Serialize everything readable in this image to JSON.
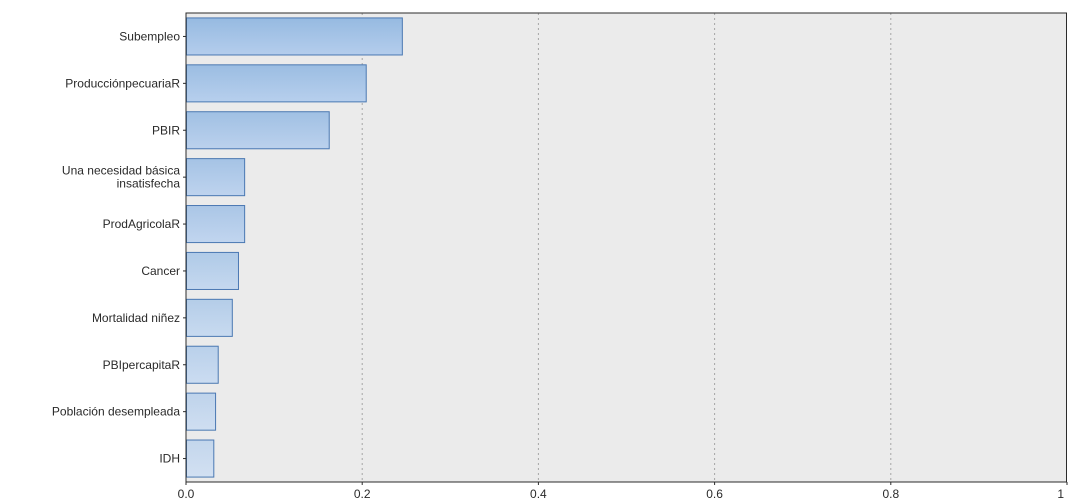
{
  "chart_data": {
    "type": "bar",
    "orientation": "horizontal",
    "title": "",
    "xlabel": "",
    "ylabel": "",
    "categories": [
      [
        "Subempleo"
      ],
      [
        "ProducciónpecuariaR"
      ],
      [
        "PBIR"
      ],
      [
        "Una necesidad básica",
        "insatisfecha"
      ],
      [
        "ProdAgricolaR"
      ],
      [
        "Cancer"
      ],
      [
        "Mortalidad niñez"
      ],
      [
        "PBIpercapitaR"
      ],
      [
        "Población desempleada"
      ],
      [
        "IDH"
      ]
    ],
    "values": [
      0.245,
      0.204,
      0.162,
      0.066,
      0.066,
      0.059,
      0.052,
      0.036,
      0.033,
      0.031
    ],
    "xlim": [
      0,
      1
    ],
    "xticks": [
      "0.0",
      "0.2",
      "0.4",
      "0.6",
      "0.8",
      "1"
    ],
    "grid": "vertical-dashed",
    "legend": "none",
    "colors": {
      "bar_fill_top": "#9fbfe2",
      "bar_fill_bottom": "#c6d8ee",
      "bar_stroke": "#4a78b2",
      "plot_background": "#ebebeb",
      "axis": "#2b2b2b"
    }
  }
}
